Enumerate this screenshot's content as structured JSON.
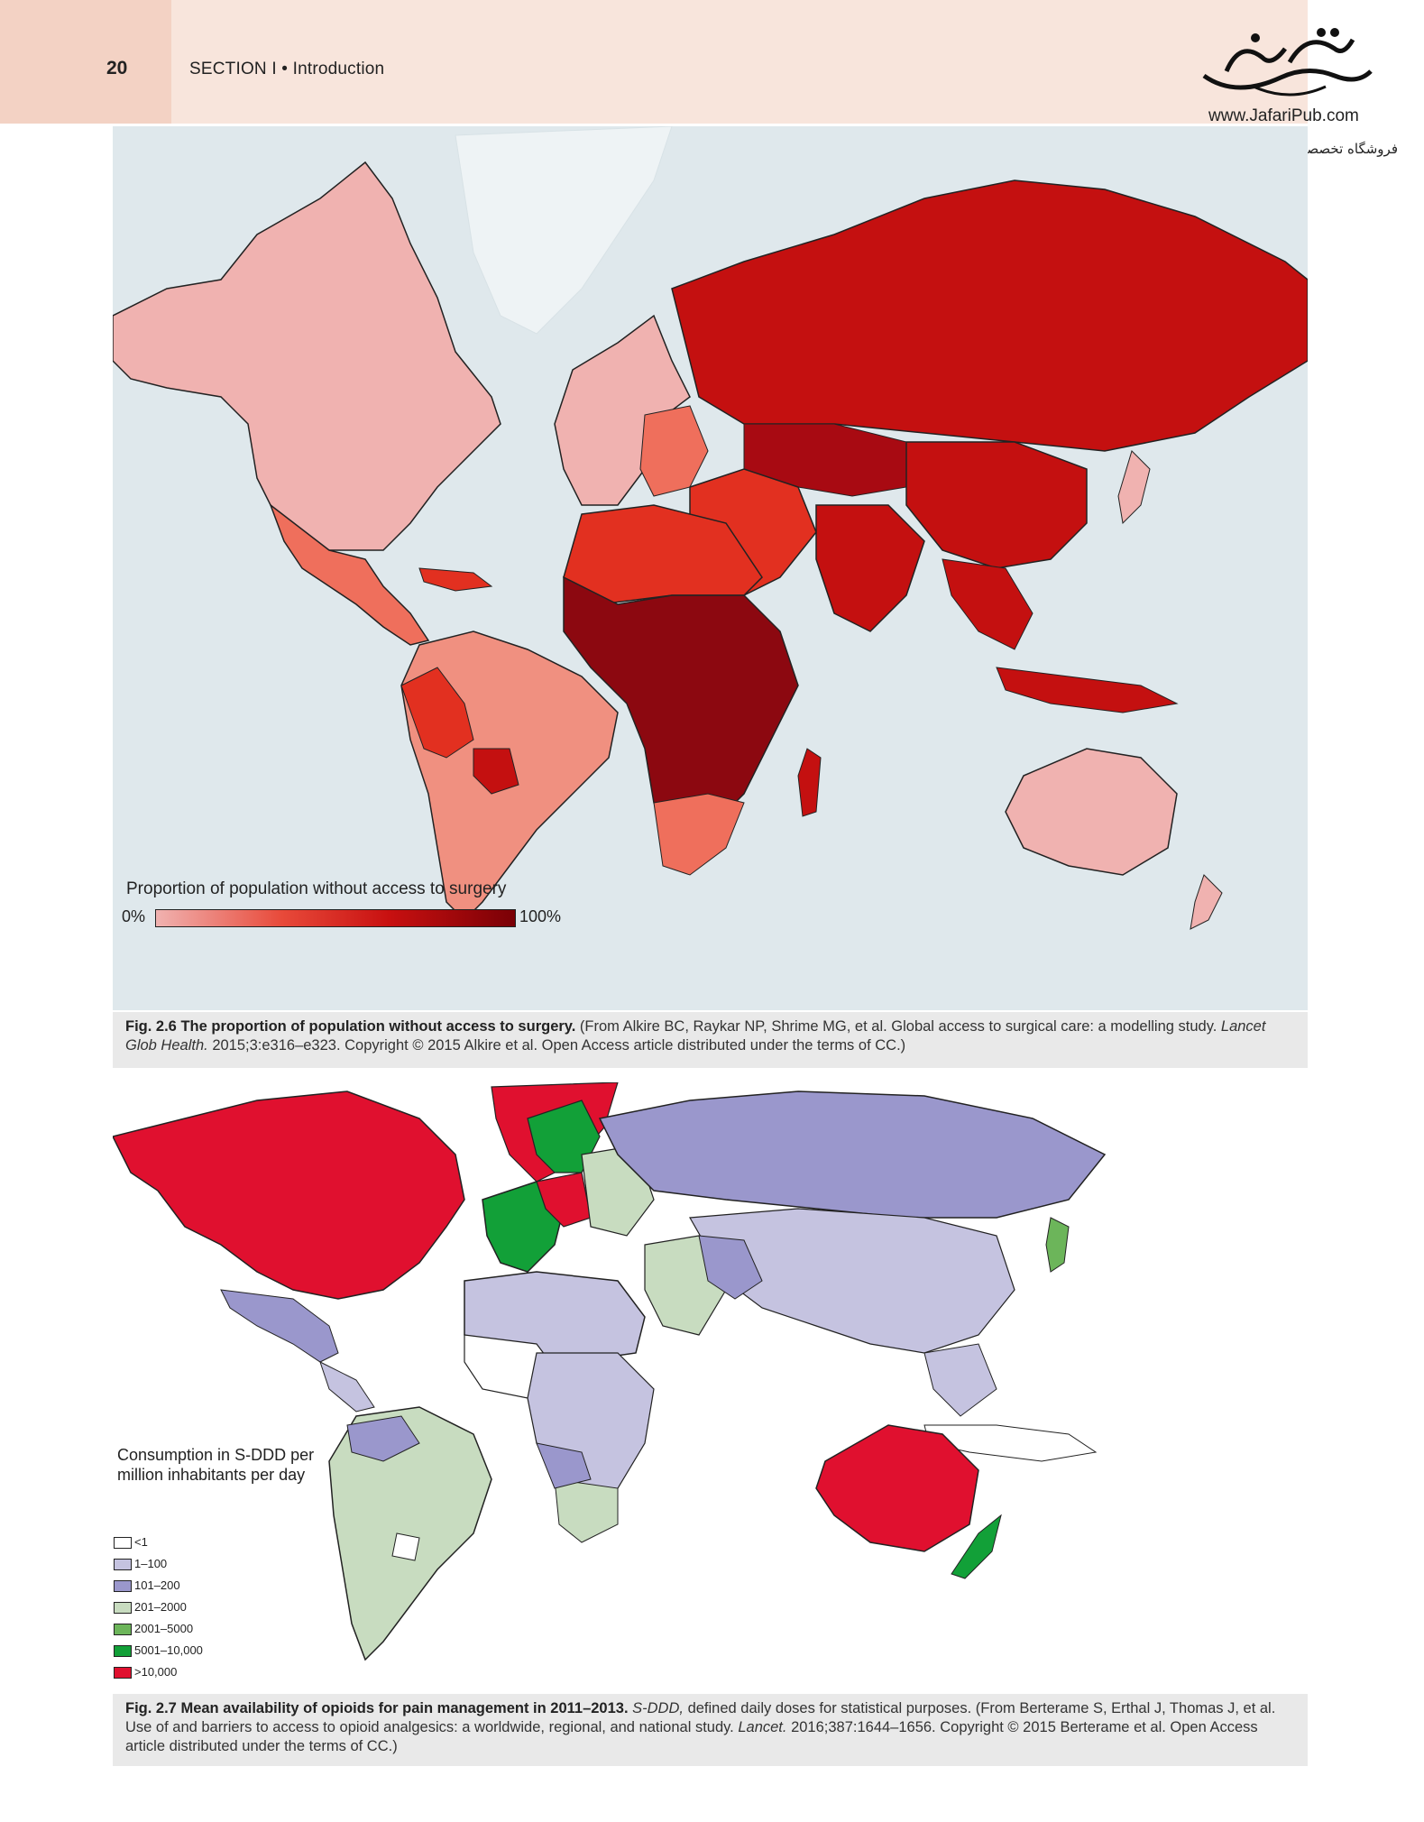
{
  "header": {
    "page_number": "20",
    "running_head": "SECTION I • Introduction"
  },
  "publisher": {
    "logo": "jafari-calligraphy-logo",
    "url": "www.JafariPub.com",
    "name": "فروشگاه تخصصی پزشکی جعفری نوین"
  },
  "figure1": {
    "legend_title": "Proportion of population without access to surgery",
    "legend_min": "0%",
    "legend_max": "100%",
    "colors": {
      "ocean": "#dfe8ec",
      "low": "#f0b2b0",
      "mid_low": "#ef6f5c",
      "mid": "#e23020",
      "high": "#c41010",
      "very_high": "#8c0810"
    },
    "caption_label": "Fig. 2.6",
    "caption_title": "The proportion of population without access to surgery.",
    "caption_pre": "(From Alkire BC, Raykar NP, Shrime MG, et al. Global access to surgical care: a modelling study.",
    "caption_journal": "Lancet Glob Health.",
    "caption_post": "2015;3:e316–e323. Copyright © 2015 Alkire et al. Open Access article distributed under the terms of CC.)"
  },
  "figure2": {
    "legend_title": "Consumption in S-DDD per million inhabitants per day",
    "legend_items": [
      {
        "label": "<1",
        "color": "#ffffff"
      },
      {
        "label": "1–100",
        "color": "#c5c3e0"
      },
      {
        "label": "101–200",
        "color": "#9a97cc"
      },
      {
        "label": "201–2000",
        "color": "#c8dcc0"
      },
      {
        "label": "2001–5000",
        "color": "#6cb55a"
      },
      {
        "label": "5001–10,000",
        "color": "#12a038"
      },
      {
        "label": ">10,000",
        "color": "#e0102f"
      }
    ],
    "caption_label": "Fig. 2.7",
    "caption_title": "Mean availability of opioids for pain management in 2011–2013.",
    "caption_abbrev": "S-DDD,",
    "caption_definition": "defined daily doses for statistical purposes.",
    "caption_pre": "(From Berterame S, Erthal J, Thomas J, et al. Use of and barriers to access to opioid analgesics: a worldwide, regional, and national study.",
    "caption_journal": "Lancet.",
    "caption_post": "2016;387:1644–1656. Copyright © 2015 Berterame et al. Open Access article distributed under the terms of CC.)"
  }
}
